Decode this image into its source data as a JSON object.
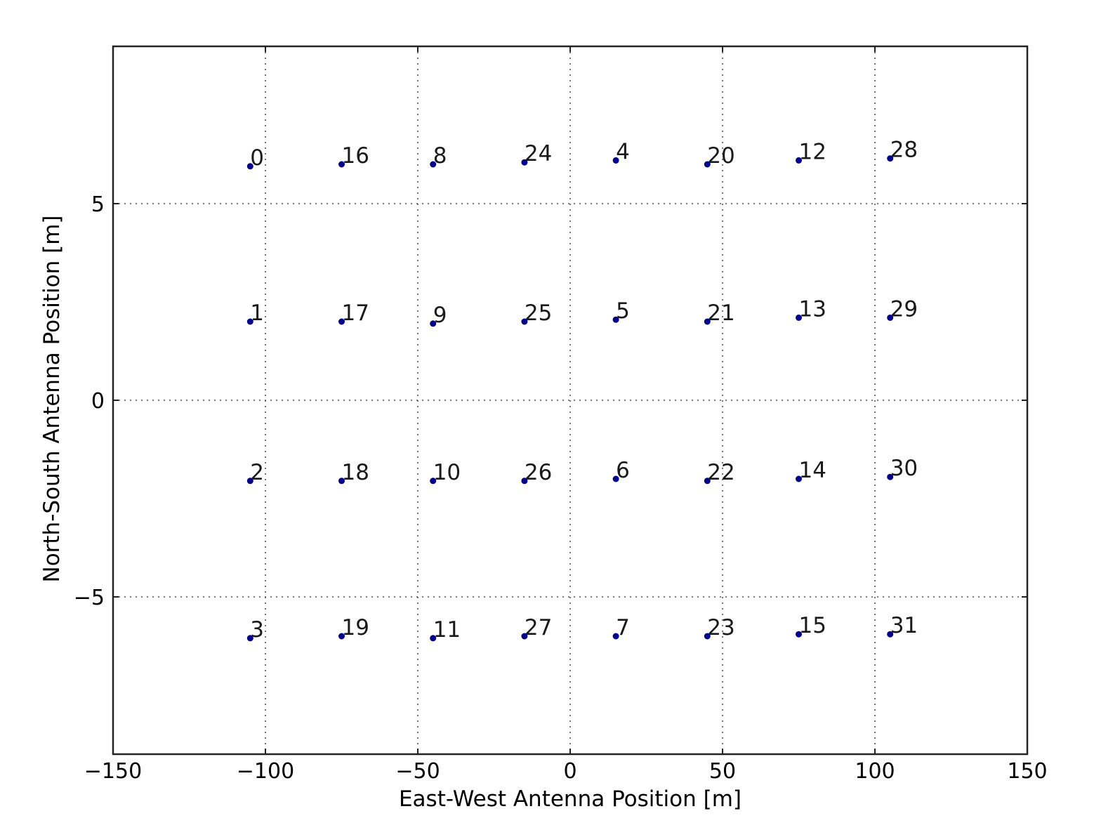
{
  "chart_data": {
    "type": "scatter",
    "title": "",
    "xlabel": "East-West Antenna Position [m]",
    "ylabel": "North-South Antenna Position [m]",
    "xlim": [
      -150,
      150
    ],
    "ylim": [
      -9,
      9
    ],
    "grid": true,
    "x_ticks": [
      -150,
      -100,
      -50,
      0,
      50,
      100,
      150
    ],
    "y_ticks": [
      -5,
      0,
      5
    ],
    "x_tick_labels": [
      "−150",
      "−100",
      "−50",
      "0",
      "50",
      "100",
      "150"
    ],
    "y_tick_labels": [
      "−5",
      "0",
      "5"
    ],
    "point_color": "#00008b",
    "points": [
      {
        "label": "0",
        "x": -105,
        "y": 5.95
      },
      {
        "label": "16",
        "x": -75,
        "y": 6.0
      },
      {
        "label": "8",
        "x": -45,
        "y": 6.0
      },
      {
        "label": "24",
        "x": -15,
        "y": 6.05
      },
      {
        "label": "4",
        "x": 15,
        "y": 6.1
      },
      {
        "label": "20",
        "x": 45,
        "y": 6.0
      },
      {
        "label": "12",
        "x": 75,
        "y": 6.1
      },
      {
        "label": "28",
        "x": 105,
        "y": 6.15
      },
      {
        "label": "1",
        "x": -105,
        "y": 2.0
      },
      {
        "label": "17",
        "x": -75,
        "y": 2.0
      },
      {
        "label": "9",
        "x": -45,
        "y": 1.95
      },
      {
        "label": "25",
        "x": -15,
        "y": 2.0
      },
      {
        "label": "5",
        "x": 15,
        "y": 2.05
      },
      {
        "label": "21",
        "x": 45,
        "y": 2.0
      },
      {
        "label": "13",
        "x": 75,
        "y": 2.1
      },
      {
        "label": "29",
        "x": 105,
        "y": 2.1
      },
      {
        "label": "2",
        "x": -105,
        "y": -2.05
      },
      {
        "label": "18",
        "x": -75,
        "y": -2.05
      },
      {
        "label": "10",
        "x": -45,
        "y": -2.05
      },
      {
        "label": "26",
        "x": -15,
        "y": -2.05
      },
      {
        "label": "6",
        "x": 15,
        "y": -2.0
      },
      {
        "label": "22",
        "x": 45,
        "y": -2.05
      },
      {
        "label": "14",
        "x": 75,
        "y": -2.0
      },
      {
        "label": "30",
        "x": 105,
        "y": -1.95
      },
      {
        "label": "3",
        "x": -105,
        "y": -6.05
      },
      {
        "label": "19",
        "x": -75,
        "y": -6.0
      },
      {
        "label": "11",
        "x": -45,
        "y": -6.05
      },
      {
        "label": "27",
        "x": -15,
        "y": -6.0
      },
      {
        "label": "7",
        "x": 15,
        "y": -6.0
      },
      {
        "label": "23",
        "x": 45,
        "y": -6.0
      },
      {
        "label": "15",
        "x": 75,
        "y": -5.95
      },
      {
        "label": "31",
        "x": 105,
        "y": -5.95
      }
    ]
  }
}
